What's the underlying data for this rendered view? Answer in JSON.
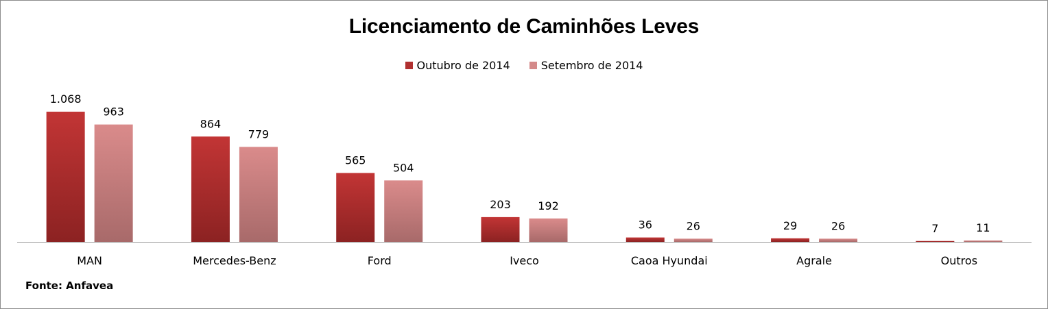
{
  "chart_data": {
    "type": "bar",
    "title": "Licenciamento de Caminhões Leves",
    "categories": [
      "MAN",
      "Mercedes-Benz",
      "Ford",
      "Iveco",
      "Caoa Hyundai",
      "Agrale",
      "Outros"
    ],
    "series": [
      {
        "name": "Outubro de 2014",
        "values": [
          1068,
          864,
          565,
          203,
          36,
          29,
          7
        ],
        "labels": [
          "1.068",
          "864",
          "565",
          "203",
          "36",
          "29",
          "7"
        ],
        "color": "#b03030"
      },
      {
        "name": "Setembro de 2014",
        "values": [
          963,
          779,
          504,
          192,
          26,
          26,
          11
        ],
        "labels": [
          "963",
          "779",
          "504",
          "192",
          "26",
          "26",
          "11"
        ],
        "color": "#d48a8a"
      }
    ],
    "ylim": [
      0,
      1100
    ],
    "xlabel": "",
    "ylabel": "",
    "legend": "top-center",
    "grid": false
  },
  "source": "Fonte: Anfavea"
}
